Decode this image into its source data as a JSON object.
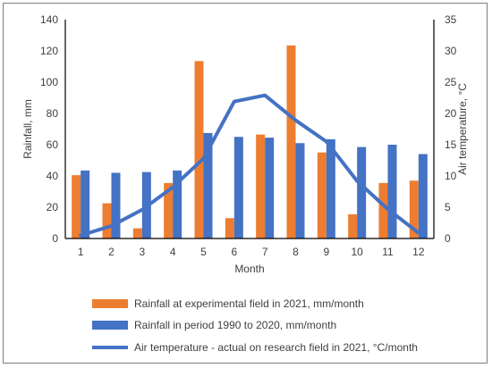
{
  "chart_data": {
    "type": "bar",
    "categories": [
      "1",
      "2",
      "3",
      "4",
      "5",
      "6",
      "7",
      "8",
      "9",
      "10",
      "11",
      "12"
    ],
    "xlabel": "Month",
    "ylabel": "Rainfall, mm",
    "y2label": "Air temperature, °C",
    "ylim": [
      0,
      140
    ],
    "y2lim": [
      0,
      35
    ],
    "yticks": [
      0,
      20,
      40,
      60,
      80,
      100,
      120,
      140
    ],
    "y2ticks": [
      0,
      5,
      10,
      15,
      20,
      25,
      30,
      35
    ],
    "grid": false,
    "legend_position": "bottom",
    "series": [
      {
        "name": "Rainfall at experimental field in 2021, mm/month",
        "type": "bar",
        "axis": "left",
        "color": "#ed7d31",
        "values": [
          40.5,
          22.5,
          6.5,
          35.5,
          113.5,
          13.0,
          66.5,
          123.5,
          55.0,
          15.5,
          35.5,
          37.0
        ]
      },
      {
        "name": "Rainfall in period 1990 to 2020, mm/month",
        "type": "bar",
        "axis": "left",
        "color": "#4472c4",
        "values": [
          43.5,
          42.0,
          42.5,
          43.5,
          67.5,
          65.0,
          64.5,
          61.0,
          63.5,
          58.5,
          60.0,
          54.0
        ]
      },
      {
        "name": "Air temperature - actual on research field in 2021, °C/month",
        "type": "line",
        "axis": "right",
        "color": "#4472c4",
        "values": [
          0.5,
          2.0,
          4.6,
          8.2,
          12.8,
          21.9,
          22.9,
          18.9,
          15.5,
          9.2,
          4.7,
          0.9
        ]
      }
    ]
  }
}
